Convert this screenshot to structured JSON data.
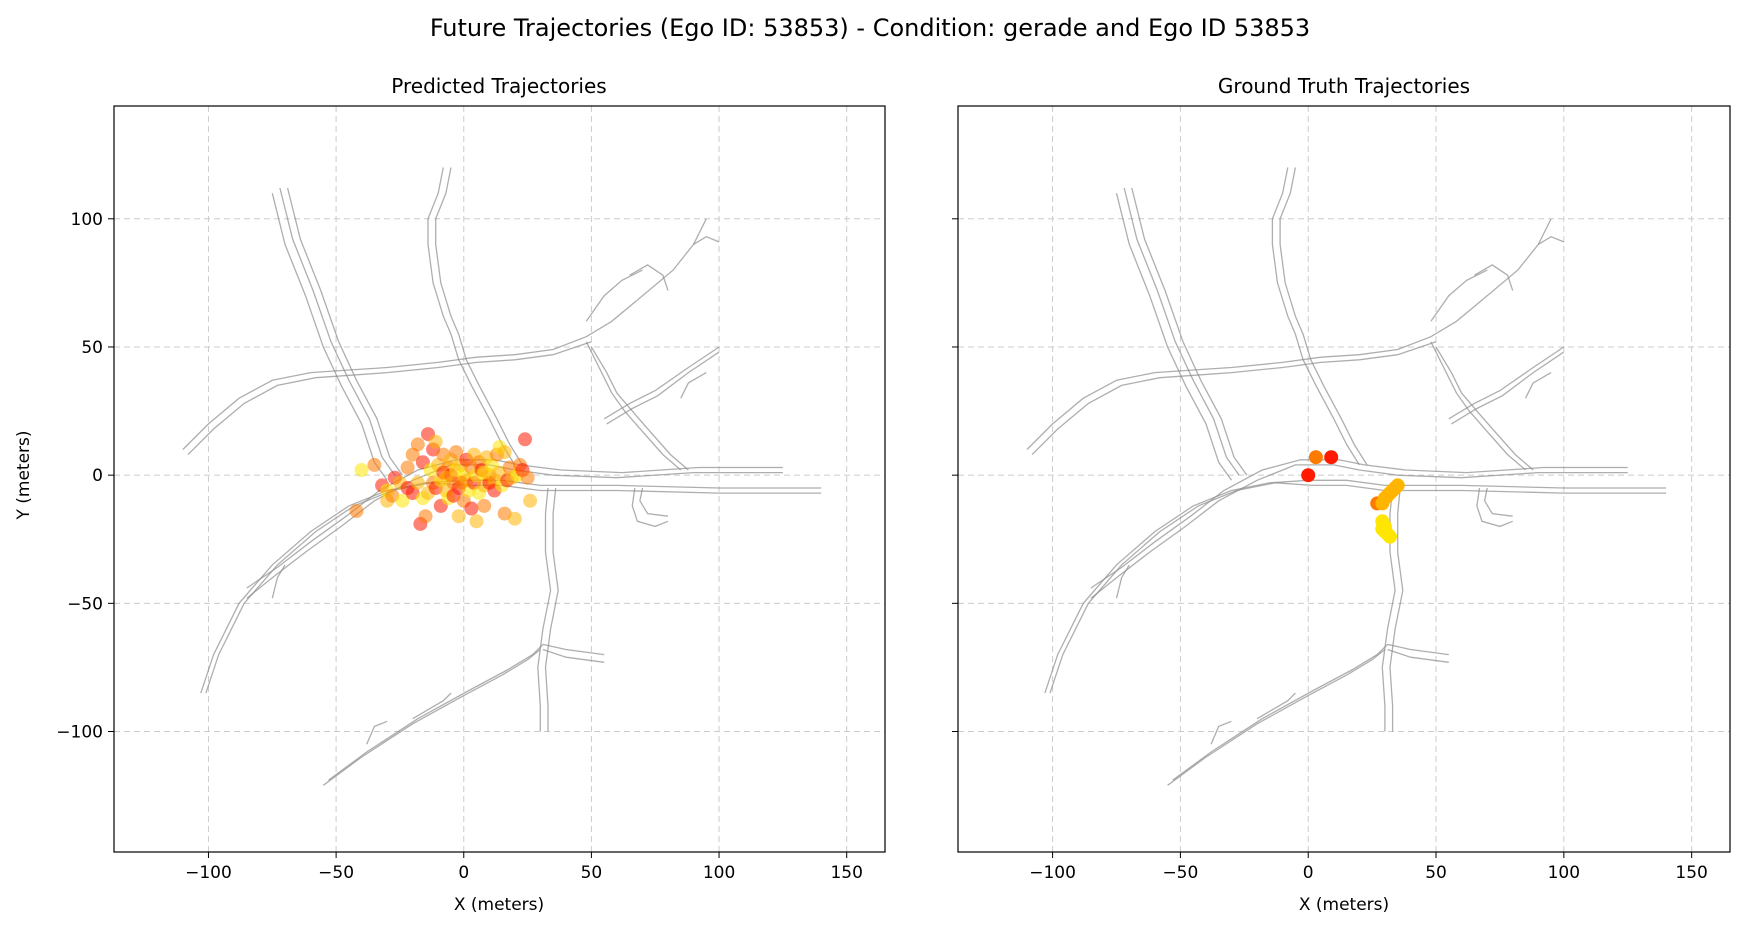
{
  "figure": {
    "suptitle": "Future Trajectories (Ego ID: 53853) - Condition: gerade and Ego ID 53853"
  },
  "colors": {
    "road": "#8c8c8c",
    "grid": "#cccccc",
    "red": "#ff1a00",
    "orange": "#ff7a00",
    "amber": "#ffb400",
    "yellow": "#ffe600"
  },
  "chart_data": [
    {
      "type": "scatter",
      "title": "Predicted Trajectories",
      "xlabel": "X (meters)",
      "ylabel": "Y (meters)",
      "xlim": [
        -137,
        165
      ],
      "ylim": [
        -147,
        144
      ],
      "xticks": [
        -100,
        -50,
        0,
        50,
        100,
        150
      ],
      "yticks": [
        100,
        50,
        0,
        -50,
        -100
      ],
      "grid": true,
      "legend": "none",
      "point_alpha": 0.55,
      "points": [
        [
          -40,
          2,
          "yellow"
        ],
        [
          -42,
          -14,
          "orange"
        ],
        [
          -35,
          4,
          "orange"
        ],
        [
          -32,
          -4,
          "red"
        ],
        [
          -30,
          -10,
          "amber"
        ],
        [
          -30,
          -6,
          "yellow"
        ],
        [
          -28,
          -8,
          "orange"
        ],
        [
          -27,
          -1,
          "red"
        ],
        [
          -25,
          -3,
          "amber"
        ],
        [
          -24,
          -10,
          "yellow"
        ],
        [
          -22,
          -5,
          "red"
        ],
        [
          -22,
          3,
          "orange"
        ],
        [
          -20,
          -7,
          "red"
        ],
        [
          -20,
          8,
          "orange"
        ],
        [
          -18,
          -3,
          "amber"
        ],
        [
          -18,
          12,
          "orange"
        ],
        [
          -17,
          -19,
          "red"
        ],
        [
          -16,
          -9,
          "yellow"
        ],
        [
          -16,
          5,
          "red"
        ],
        [
          -15,
          -16,
          "orange"
        ],
        [
          -14,
          -7,
          "amber"
        ],
        [
          -14,
          16,
          "red"
        ],
        [
          -13,
          2,
          "yellow"
        ],
        [
          -12,
          10,
          "red"
        ],
        [
          -12,
          -3,
          "orange"
        ],
        [
          -11,
          13,
          "amber"
        ],
        [
          -11,
          -5,
          "red"
        ],
        [
          -10,
          4,
          "amber"
        ],
        [
          -9,
          -12,
          "red"
        ],
        [
          -9,
          -2,
          "yellow"
        ],
        [
          -8,
          8,
          "orange"
        ],
        [
          -8,
          1,
          "red"
        ],
        [
          -7,
          -6,
          "amber"
        ],
        [
          -6,
          3,
          "orange"
        ],
        [
          -6,
          -9,
          "yellow"
        ],
        [
          -5,
          0,
          "red"
        ],
        [
          -5,
          6,
          "amber"
        ],
        [
          -4,
          -3,
          "orange"
        ],
        [
          -4,
          -8,
          "red"
        ],
        [
          -3,
          9,
          "orange"
        ],
        [
          -3,
          2,
          "yellow"
        ],
        [
          -2,
          -16,
          "amber"
        ],
        [
          -2,
          -5,
          "red"
        ],
        [
          -1,
          4,
          "amber"
        ],
        [
          0,
          0,
          "yellow"
        ],
        [
          0,
          -10,
          "orange"
        ],
        [
          1,
          6,
          "red"
        ],
        [
          1,
          -2,
          "amber"
        ],
        [
          2,
          -6,
          "yellow"
        ],
        [
          3,
          3,
          "orange"
        ],
        [
          3,
          -13,
          "red"
        ],
        [
          4,
          8,
          "amber"
        ],
        [
          4,
          -3,
          "red"
        ],
        [
          5,
          0,
          "yellow"
        ],
        [
          5,
          -18,
          "amber"
        ],
        [
          6,
          5,
          "orange"
        ],
        [
          6,
          -7,
          "yellow"
        ],
        [
          7,
          2,
          "red"
        ],
        [
          8,
          -4,
          "amber"
        ],
        [
          8,
          -12,
          "orange"
        ],
        [
          9,
          7,
          "amber"
        ],
        [
          10,
          0,
          "orange"
        ],
        [
          10,
          -3,
          "red"
        ],
        [
          11,
          4,
          "yellow"
        ],
        [
          12,
          -2,
          "amber"
        ],
        [
          12,
          -6,
          "red"
        ],
        [
          13,
          8,
          "orange"
        ],
        [
          14,
          11,
          "yellow"
        ],
        [
          14,
          1,
          "amber"
        ],
        [
          15,
          -4,
          "yellow"
        ],
        [
          16,
          -15,
          "orange"
        ],
        [
          16,
          9,
          "amber"
        ],
        [
          17,
          -2,
          "red"
        ],
        [
          18,
          3,
          "orange"
        ],
        [
          19,
          -1,
          "amber"
        ],
        [
          20,
          -17,
          "amber"
        ],
        [
          21,
          0,
          "yellow"
        ],
        [
          22,
          4,
          "orange"
        ],
        [
          23,
          2,
          "red"
        ],
        [
          24,
          14,
          "red"
        ],
        [
          25,
          -1,
          "orange"
        ],
        [
          26,
          -10,
          "amber"
        ],
        [
          -7,
          -1,
          "amber"
        ],
        [
          -1,
          -3,
          "orange"
        ],
        [
          8,
          1,
          "yellow"
        ]
      ]
    },
    {
      "type": "scatter",
      "title": "Ground Truth Trajectories",
      "xlabel": "X (meters)",
      "ylabel": "",
      "xlim": [
        -137,
        165
      ],
      "ylim": [
        -147,
        144
      ],
      "xticks": [
        -100,
        -50,
        0,
        50,
        100,
        150
      ],
      "yticks": [
        100,
        50,
        0,
        -50,
        -100
      ],
      "grid": true,
      "legend": "none",
      "point_alpha": 1,
      "points": [
        [
          0,
          0,
          "red"
        ],
        [
          3,
          7,
          "orange"
        ],
        [
          9,
          7,
          "red"
        ],
        [
          27,
          -11,
          "orange"
        ],
        [
          29,
          -11,
          "amber"
        ],
        [
          30,
          -9,
          "amber"
        ],
        [
          31,
          -8,
          "amber"
        ],
        [
          32,
          -7,
          "amber"
        ],
        [
          33,
          -6,
          "amber"
        ],
        [
          34,
          -5,
          "amber"
        ],
        [
          35,
          -4,
          "amber"
        ],
        [
          29,
          -18,
          "yellow"
        ],
        [
          30,
          -20,
          "yellow"
        ],
        [
          30,
          -22,
          "yellow"
        ],
        [
          31,
          -23,
          "yellow"
        ],
        [
          32,
          -24,
          "yellow"
        ],
        [
          29,
          -21,
          "yellow"
        ]
      ]
    }
  ],
  "road_network": [
    [
      [
        -110,
        10
      ],
      [
        -100,
        20
      ],
      [
        -88,
        30
      ],
      [
        -75,
        37
      ],
      [
        -60,
        40
      ],
      [
        -45,
        41
      ],
      [
        -30,
        42
      ],
      [
        -10,
        44
      ],
      [
        5,
        46
      ],
      [
        20,
        47
      ],
      [
        35,
        49
      ],
      [
        48,
        54
      ],
      [
        58,
        60
      ],
      [
        70,
        70
      ],
      [
        82,
        80
      ],
      [
        90,
        90
      ],
      [
        95,
        100
      ]
    ],
    [
      [
        -108,
        8
      ],
      [
        -98,
        18
      ],
      [
        -86,
        28
      ],
      [
        -73,
        35
      ],
      [
        -58,
        38
      ],
      [
        -44,
        39
      ],
      [
        -30,
        40
      ],
      [
        -10,
        42
      ],
      [
        5,
        44
      ],
      [
        20,
        45
      ],
      [
        35,
        47
      ],
      [
        50,
        52
      ]
    ],
    [
      [
        -75,
        110
      ],
      [
        -70,
        90
      ],
      [
        -62,
        70
      ],
      [
        -55,
        50
      ],
      [
        -48,
        35
      ],
      [
        -40,
        20
      ],
      [
        -35,
        5
      ],
      [
        -30,
        -2
      ]
    ],
    [
      [
        -72,
        112
      ],
      [
        -67,
        92
      ],
      [
        -59,
        72
      ],
      [
        -52,
        52
      ],
      [
        -45,
        37
      ],
      [
        -37,
        22
      ],
      [
        -32,
        7
      ],
      [
        -27,
        0
      ]
    ],
    [
      [
        -69,
        112
      ],
      [
        -64,
        92
      ],
      [
        -56,
        72
      ],
      [
        -49,
        52
      ],
      [
        -42,
        37
      ],
      [
        -34,
        22
      ],
      [
        -29,
        7
      ],
      [
        -24,
        0
      ]
    ],
    [
      [
        -8,
        120
      ],
      [
        -10,
        110
      ],
      [
        -14,
        100
      ],
      [
        -14,
        90
      ],
      [
        -12,
        75
      ],
      [
        -8,
        62
      ],
      [
        -5,
        55
      ]
    ],
    [
      [
        -5,
        120
      ],
      [
        -7,
        110
      ],
      [
        -11,
        100
      ],
      [
        -11,
        90
      ],
      [
        -9,
        75
      ],
      [
        -5,
        62
      ],
      [
        -2,
        55
      ]
    ],
    [
      [
        -5,
        55
      ],
      [
        -2,
        45
      ],
      [
        3,
        35
      ],
      [
        10,
        22
      ],
      [
        15,
        12
      ],
      [
        20,
        4
      ]
    ],
    [
      [
        -2,
        55
      ],
      [
        1,
        45
      ],
      [
        6,
        35
      ],
      [
        13,
        22
      ],
      [
        18,
        12
      ],
      [
        23,
        4
      ]
    ],
    [
      [
        -85,
        -48
      ],
      [
        -75,
        -40
      ],
      [
        -62,
        -30
      ],
      [
        -48,
        -20
      ],
      [
        -35,
        -10
      ],
      [
        -20,
        -2
      ],
      [
        -5,
        4
      ],
      [
        10,
        4
      ],
      [
        20,
        2
      ],
      [
        35,
        0
      ],
      [
        60,
        -1
      ],
      [
        90,
        1
      ],
      [
        125,
        1
      ]
    ],
    [
      [
        -85,
        -44
      ],
      [
        -73,
        -36
      ],
      [
        -60,
        -26
      ],
      [
        -46,
        -16
      ],
      [
        -33,
        -6
      ],
      [
        -18,
        2
      ],
      [
        -3,
        6
      ],
      [
        12,
        6
      ],
      [
        22,
        4
      ],
      [
        38,
        2
      ],
      [
        62,
        1
      ],
      [
        92,
        3
      ],
      [
        125,
        3
      ]
    ],
    [
      [
        -103,
        -85
      ],
      [
        -98,
        -70
      ],
      [
        -88,
        -50
      ],
      [
        -75,
        -35
      ],
      [
        -60,
        -22
      ],
      [
        -45,
        -12
      ],
      [
        -30,
        -6
      ],
      [
        -15,
        -3
      ],
      [
        0,
        -2
      ],
      [
        15,
        -2
      ],
      [
        30,
        -4
      ],
      [
        60,
        -4
      ],
      [
        100,
        -5
      ],
      [
        140,
        -5
      ]
    ],
    [
      [
        -101,
        -85
      ],
      [
        -96,
        -70
      ],
      [
        -86,
        -50
      ],
      [
        -73,
        -35
      ],
      [
        -58,
        -22
      ],
      [
        -43,
        -12
      ],
      [
        -28,
        -6
      ],
      [
        -13,
        -3
      ],
      [
        2,
        -4
      ],
      [
        15,
        -4
      ],
      [
        30,
        -6
      ],
      [
        60,
        -6
      ],
      [
        100,
        -7
      ],
      [
        140,
        -7
      ]
    ],
    [
      [
        33,
        -5
      ],
      [
        32,
        -15
      ],
      [
        32,
        -30
      ],
      [
        34,
        -45
      ],
      [
        31,
        -60
      ],
      [
        29,
        -75
      ],
      [
        30,
        -90
      ],
      [
        30,
        -100
      ]
    ],
    [
      [
        36,
        -5
      ],
      [
        35,
        -15
      ],
      [
        35,
        -30
      ],
      [
        37,
        -45
      ],
      [
        34,
        -60
      ],
      [
        32,
        -75
      ],
      [
        33,
        -90
      ],
      [
        33,
        -100
      ]
    ],
    [
      [
        -55,
        -121
      ],
      [
        -40,
        -110
      ],
      [
        -20,
        -97
      ],
      [
        0,
        -86
      ],
      [
        15,
        -78
      ],
      [
        25,
        -72
      ],
      [
        30,
        -68
      ]
    ],
    [
      [
        -53,
        -119
      ],
      [
        -38,
        -108
      ],
      [
        -18,
        -95
      ],
      [
        2,
        -84
      ],
      [
        17,
        -76
      ],
      [
        27,
        -70
      ],
      [
        31,
        -66
      ]
    ],
    [
      [
        31,
        -66
      ],
      [
        40,
        -68
      ],
      [
        55,
        -70
      ]
    ],
    [
      [
        31,
        -68
      ],
      [
        40,
        -71
      ],
      [
        55,
        -73
      ]
    ],
    [
      [
        48,
        52
      ],
      [
        53,
        42
      ],
      [
        58,
        32
      ],
      [
        63,
        25
      ],
      [
        70,
        17
      ],
      [
        78,
        8
      ],
      [
        85,
        2
      ]
    ],
    [
      [
        50,
        50
      ],
      [
        56,
        40
      ],
      [
        60,
        32
      ],
      [
        66,
        25
      ],
      [
        73,
        17
      ],
      [
        81,
        8
      ],
      [
        88,
        2
      ]
    ],
    [
      [
        55,
        22
      ],
      [
        65,
        28
      ],
      [
        75,
        33
      ],
      [
        88,
        42
      ],
      [
        100,
        50
      ]
    ],
    [
      [
        56,
        20
      ],
      [
        66,
        26
      ],
      [
        76,
        31
      ],
      [
        88,
        40
      ],
      [
        100,
        48
      ]
    ],
    [
      [
        48,
        60
      ],
      [
        55,
        70
      ],
      [
        62,
        76
      ],
      [
        70,
        80
      ]
    ],
    [
      [
        65,
        78
      ],
      [
        72,
        82
      ],
      [
        78,
        78
      ],
      [
        80,
        72
      ]
    ],
    [
      [
        85,
        30
      ],
      [
        88,
        36
      ],
      [
        95,
        40
      ]
    ],
    [
      [
        90,
        90
      ],
      [
        95,
        93
      ],
      [
        100,
        91
      ]
    ],
    [
      [
        67,
        -5
      ],
      [
        66,
        -12
      ],
      [
        68,
        -18
      ],
      [
        75,
        -20
      ],
      [
        80,
        -18
      ]
    ],
    [
      [
        70,
        -5
      ],
      [
        69,
        -10
      ],
      [
        72,
        -15
      ],
      [
        80,
        -16
      ]
    ],
    [
      [
        -75,
        -48
      ],
      [
        -73,
        -40
      ],
      [
        -70,
        -35
      ]
    ],
    [
      [
        -38,
        -105
      ],
      [
        -35,
        -98
      ],
      [
        -30,
        -96
      ]
    ],
    [
      [
        -20,
        -95
      ],
      [
        -8,
        -88
      ],
      [
        -5,
        -85
      ]
    ]
  ]
}
